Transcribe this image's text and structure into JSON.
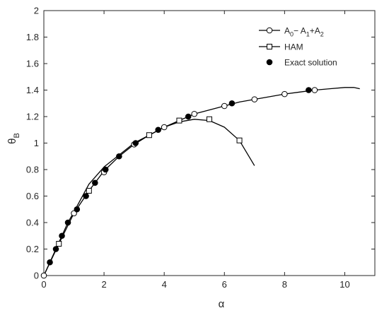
{
  "chart_data": {
    "type": "line",
    "title": "",
    "xlabel": "α",
    "ylabel": "θ",
    "ylabel_subscript": "B",
    "xlim": [
      0,
      11
    ],
    "ylim": [
      0,
      2
    ],
    "xticks": [
      "0",
      "2",
      "4",
      "6",
      "8",
      "10"
    ],
    "yticks": [
      "0",
      "0.2",
      "0.4",
      "0.6",
      "0.8",
      "1",
      "1.2",
      "1.4",
      "1.6",
      "1.8",
      "2"
    ],
    "grid": false,
    "legend_position": "top-right",
    "series": [
      {
        "name": "A0−A1+A2",
        "legend_parts": [
          {
            "text": "A",
            "sub": "0"
          },
          {
            "text": "− A",
            "sub": "1"
          },
          {
            "text": "+A",
            "sub": "2"
          }
        ],
        "marker": "open-circle",
        "color": "#000000",
        "line": {
          "x": [
            0,
            0.2,
            0.4,
            0.6,
            0.8,
            1.0,
            1.5,
            2.0,
            2.5,
            3.0,
            3.5,
            4.0,
            4.5,
            5.0,
            5.5,
            6.0,
            6.5,
            7.0,
            7.5,
            8.0,
            8.5,
            9.0,
            9.5,
            10.0,
            10.3,
            10.5
          ],
          "y": [
            0,
            0.1,
            0.2,
            0.3,
            0.4,
            0.48,
            0.69,
            0.82,
            0.91,
            1.0,
            1.06,
            1.12,
            1.17,
            1.22,
            1.25,
            1.28,
            1.31,
            1.33,
            1.35,
            1.37,
            1.385,
            1.4,
            1.41,
            1.42,
            1.42,
            1.41
          ]
        },
        "markers": {
          "x": [
            0,
            1.0,
            2.0,
            3.0,
            4.0,
            5.0,
            6.0,
            7.0,
            8.0,
            9.0
          ],
          "y": [
            0,
            0.47,
            0.78,
            0.99,
            1.12,
            1.22,
            1.28,
            1.33,
            1.37,
            1.4
          ]
        }
      },
      {
        "name": "HAM",
        "marker": "open-square",
        "color": "#000000",
        "line": {
          "x": [
            0,
            0.5,
            1.0,
            1.5,
            2.0,
            2.5,
            3.0,
            3.5,
            4.0,
            4.5,
            5.0,
            5.5,
            6.0,
            6.5,
            7.0
          ],
          "y": [
            0,
            0.24,
            0.47,
            0.64,
            0.79,
            0.9,
            0.99,
            1.06,
            1.12,
            1.16,
            1.18,
            1.17,
            1.12,
            1.02,
            0.83
          ]
        },
        "markers": {
          "x": [
            0.5,
            1.5,
            3.5,
            4.5,
            5.5,
            6.5
          ],
          "y": [
            0.24,
            0.64,
            1.06,
            1.17,
            1.18,
            1.02
          ]
        }
      },
      {
        "name": "Exact solution",
        "marker": "filled-circle",
        "color": "#000000",
        "markers": {
          "x": [
            0.2,
            0.4,
            0.6,
            0.8,
            1.1,
            1.4,
            1.7,
            2.05,
            2.5,
            3.05,
            3.8,
            4.8,
            6.25,
            8.8
          ],
          "y": [
            0.1,
            0.2,
            0.3,
            0.4,
            0.5,
            0.6,
            0.7,
            0.8,
            0.9,
            1.0,
            1.1,
            1.2,
            1.3,
            1.4
          ]
        }
      }
    ]
  }
}
